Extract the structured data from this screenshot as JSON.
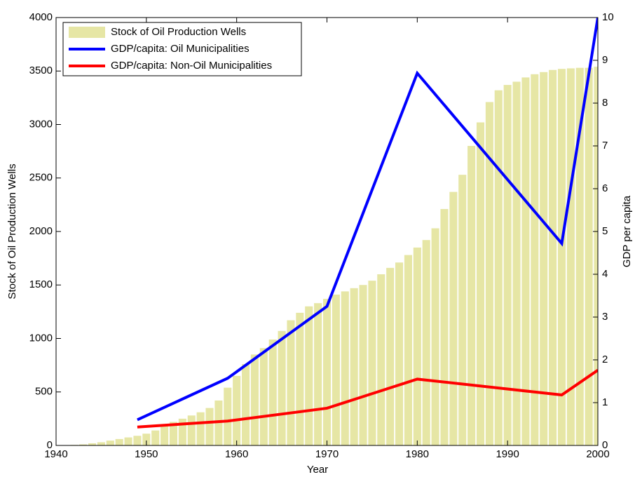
{
  "chart_data": {
    "type": "bar",
    "xlabel": "Year",
    "ylabel": "Stock of Oil Production Wells",
    "y2label": "GDP per capita",
    "xlim": [
      1940,
      2000
    ],
    "xticks": [
      1940,
      1950,
      1960,
      1970,
      1980,
      1990,
      2000
    ],
    "ylim": [
      0,
      4000
    ],
    "yticks": [
      0,
      500,
      1000,
      1500,
      2000,
      2500,
      3000,
      3500,
      4000
    ],
    "y2lim": [
      0,
      10
    ],
    "y2ticks": [
      0,
      1,
      2,
      3,
      4,
      5,
      6,
      7,
      8,
      9,
      10
    ],
    "legend": "upper left",
    "series": [
      {
        "name": "Stock of Oil Production Wells",
        "type": "bar",
        "color": "#e6e6a5",
        "x": [
          1941,
          1942,
          1943,
          1944,
          1945,
          1946,
          1947,
          1948,
          1949,
          1950,
          1951,
          1952,
          1953,
          1954,
          1955,
          1956,
          1957,
          1958,
          1959,
          1960,
          1961,
          1962,
          1963,
          1964,
          1965,
          1966,
          1967,
          1968,
          1969,
          1970,
          1971,
          1972,
          1973,
          1974,
          1975,
          1976,
          1977,
          1978,
          1979,
          1980,
          1981,
          1982,
          1983,
          1984,
          1985,
          1986,
          1987,
          1988,
          1989,
          1990,
          1991,
          1992,
          1993,
          1994,
          1995,
          1996,
          1997,
          1998,
          1999,
          2000
        ],
        "values": [
          2,
          5,
          10,
          20,
          30,
          45,
          60,
          75,
          90,
          110,
          140,
          180,
          220,
          250,
          280,
          310,
          350,
          420,
          540,
          650,
          760,
          850,
          910,
          990,
          1070,
          1170,
          1240,
          1300,
          1330,
          1370,
          1410,
          1440,
          1470,
          1500,
          1540,
          1600,
          1660,
          1710,
          1780,
          1850,
          1920,
          2030,
          2210,
          2370,
          2530,
          2800,
          3020,
          3210,
          3320,
          3370,
          3400,
          3440,
          3470,
          3490,
          3510,
          3520,
          3525,
          3530,
          3530,
          3540
        ]
      },
      {
        "name": "GDP/capita: Oil Municipalities",
        "type": "line",
        "axis": "y2",
        "color": "#0000ff",
        "x": [
          1949,
          1959,
          1970,
          1980,
          1996,
          2000
        ],
        "values": [
          0.6,
          1.57,
          3.25,
          8.7,
          4.72,
          10
        ]
      },
      {
        "name": "GDP/capita: Non-Oil Municipalities",
        "type": "line",
        "axis": "y2",
        "color": "#ff0000",
        "x": [
          1949,
          1959,
          1970,
          1980,
          1996,
          2000
        ],
        "values": [
          0.43,
          0.57,
          0.87,
          1.55,
          1.18,
          1.76
        ]
      }
    ]
  }
}
